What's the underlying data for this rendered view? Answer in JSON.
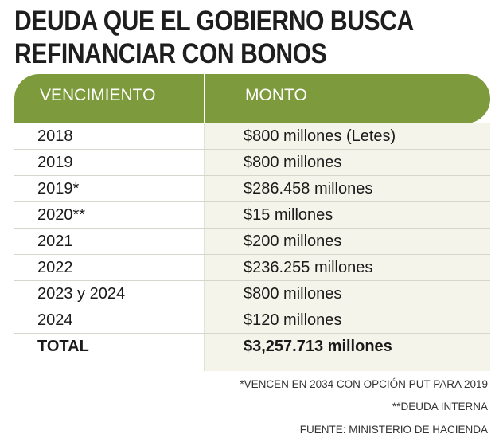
{
  "title": {
    "line1": "DEUDA QUE EL GOBIERNO BUSCA",
    "line2": "REFINANCIAR CON BONOS"
  },
  "table": {
    "headers": [
      "VENCIMIENTO",
      "MONTO"
    ],
    "rows": [
      [
        "2018",
        "$800 millones (Letes)"
      ],
      [
        "2019",
        "$800 millones"
      ],
      [
        "2019*",
        "$286.458 millones"
      ],
      [
        "2020**",
        "$15 millones"
      ],
      [
        "2021",
        "$200 millones"
      ],
      [
        "2022",
        "$236.255 millones"
      ],
      [
        "2023 y 2024",
        "$800 millones"
      ],
      [
        "2024",
        "$120 millones"
      ]
    ],
    "total": [
      "TOTAL",
      "$3,257.713 millones"
    ]
  },
  "notes": [
    "*VENCEN EN 2034 CON OPCIÓN PUT PARA 2019",
    "**DEUDA INTERNA",
    "FUENTE: MINISTERIO DE HACIENDA"
  ],
  "colors": {
    "header_bg": "#7d9a3c",
    "value_column_bg": "#f4f4ea"
  }
}
